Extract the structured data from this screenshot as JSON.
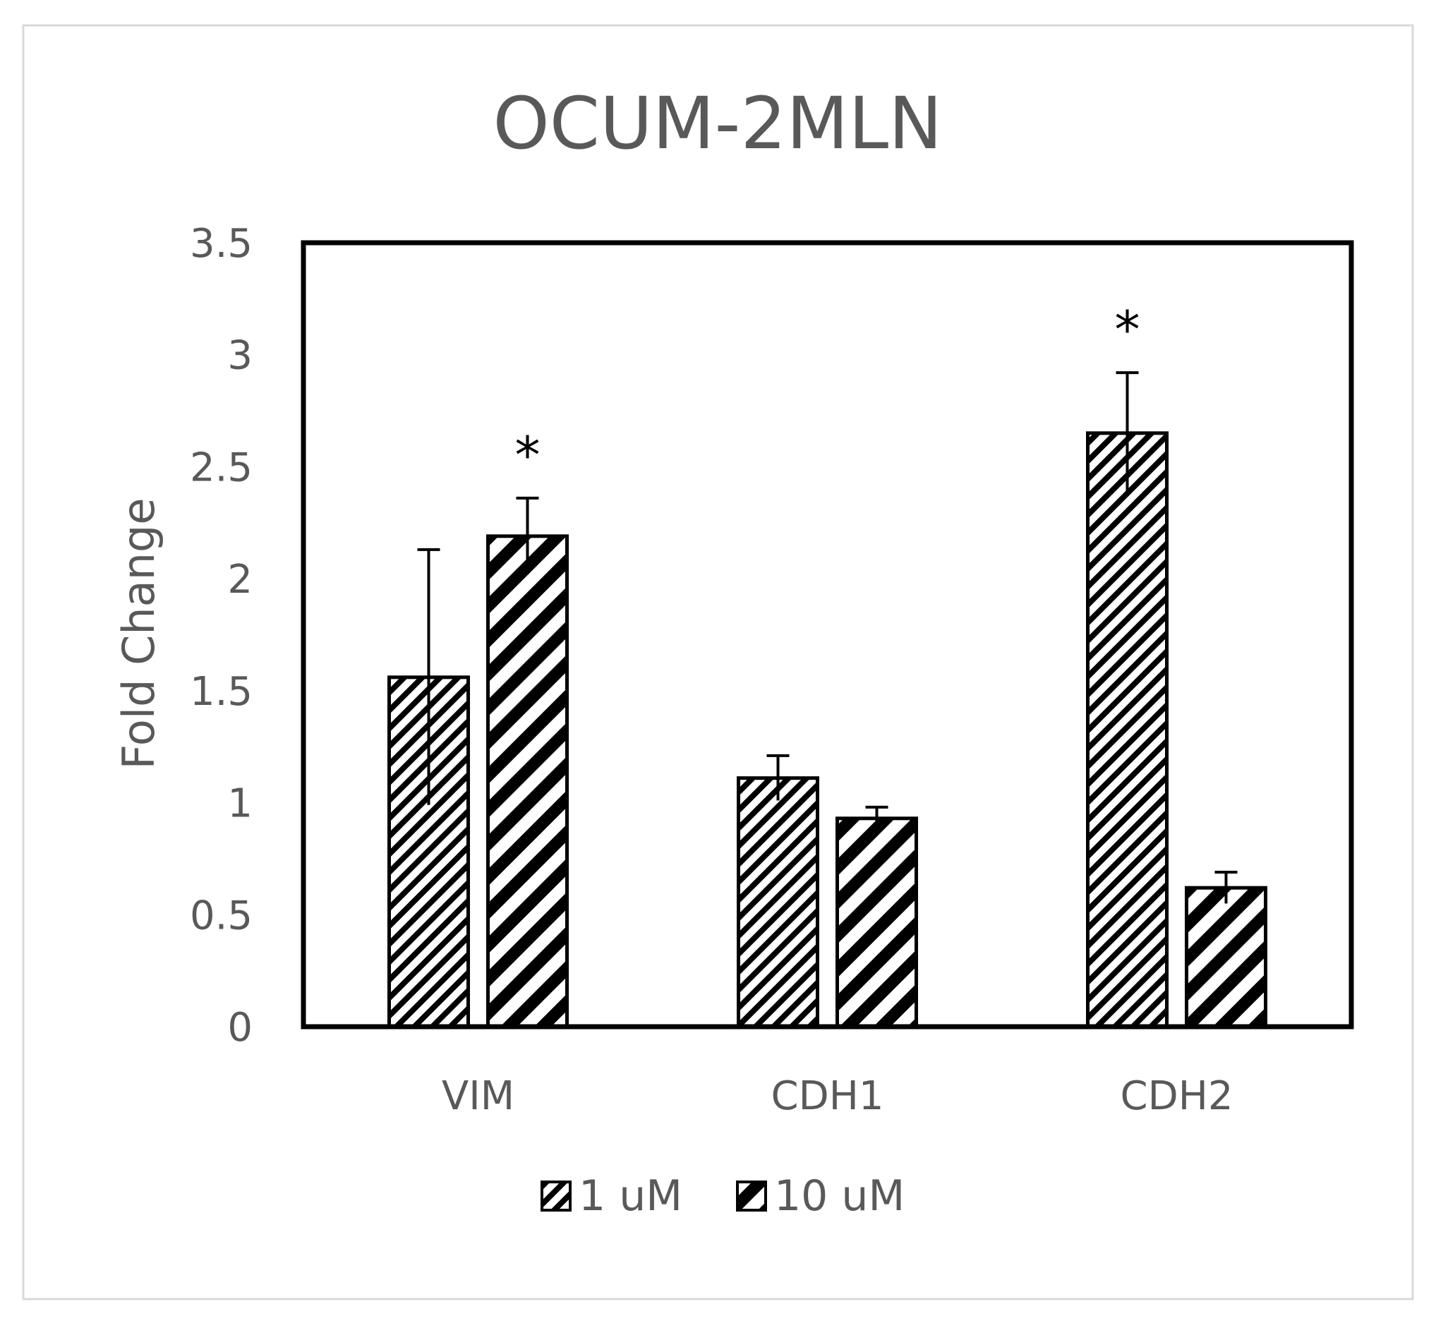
{
  "chart_data": {
    "type": "bar",
    "title": "OCUM-2MLN",
    "xlabel": "",
    "ylabel": "Fold Change",
    "ylim": [
      0,
      3.5
    ],
    "yticks": [
      "0",
      "0.5",
      "1",
      "1.5",
      "2",
      "2.5",
      "3",
      "3.5"
    ],
    "categories": [
      "VIM",
      "CDH1",
      "CDH2"
    ],
    "series": [
      {
        "name": "1 uM",
        "values": [
          1.56,
          1.11,
          2.65
        ],
        "errors": [
          0.57,
          0.1,
          0.27
        ],
        "significance": [
          "",
          "",
          "*"
        ]
      },
      {
        "name": "10 uM",
        "values": [
          2.19,
          0.93,
          0.62
        ],
        "errors": [
          0.17,
          0.05,
          0.07
        ],
        "significance": [
          "*",
          "",
          ""
        ]
      }
    ],
    "legend_position": "bottom",
    "grid": false
  }
}
